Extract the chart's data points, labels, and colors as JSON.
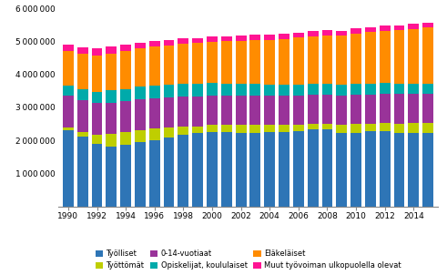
{
  "years": [
    1990,
    1991,
    1992,
    1993,
    1994,
    1995,
    1996,
    1997,
    1998,
    1999,
    2000,
    2001,
    2002,
    2003,
    2004,
    2005,
    2006,
    2007,
    2008,
    2009,
    2010,
    2011,
    2012,
    2013,
    2014,
    2015
  ],
  "tyolliset": [
    2310000,
    2100000,
    1900000,
    1820000,
    1850000,
    1940000,
    2010000,
    2090000,
    2170000,
    2210000,
    2240000,
    2240000,
    2230000,
    2230000,
    2240000,
    2250000,
    2280000,
    2330000,
    2340000,
    2210000,
    2230000,
    2280000,
    2270000,
    2230000,
    2220000,
    2220000
  ],
  "tyottomat": [
    90000,
    160000,
    270000,
    370000,
    390000,
    360000,
    340000,
    290000,
    240000,
    210000,
    220000,
    220000,
    230000,
    240000,
    220000,
    220000,
    200000,
    180000,
    170000,
    260000,
    260000,
    230000,
    250000,
    280000,
    300000,
    310000
  ],
  "nuoret_0_14": [
    960000,
    960000,
    960000,
    955000,
    948000,
    940000,
    933000,
    924000,
    916000,
    910000,
    900000,
    895000,
    890000,
    884000,
    880000,
    876000,
    872000,
    869000,
    869000,
    873000,
    878000,
    882000,
    887000,
    888000,
    886000,
    882000
  ],
  "opiskelijat": [
    300000,
    320000,
    340000,
    360000,
    370000,
    375000,
    375000,
    375000,
    375000,
    375000,
    370000,
    365000,
    360000,
    355000,
    350000,
    345000,
    340000,
    335000,
    335000,
    335000,
    330000,
    325000,
    320000,
    315000,
    310000,
    308000
  ],
  "elakelaset": [
    1050000,
    1080000,
    1110000,
    1130000,
    1150000,
    1165000,
    1185000,
    1200000,
    1215000,
    1235000,
    1255000,
    1280000,
    1305000,
    1330000,
    1355000,
    1385000,
    1415000,
    1435000,
    1460000,
    1490000,
    1530000,
    1565000,
    1595000,
    1625000,
    1655000,
    1690000
  ],
  "muut": [
    190000,
    195000,
    195000,
    195000,
    185000,
    175000,
    170000,
    165000,
    165000,
    160000,
    160000,
    160000,
    160000,
    160000,
    160000,
    160000,
    160000,
    155000,
    155000,
    155000,
    155000,
    150000,
    150000,
    150000,
    150000,
    160000
  ],
  "colors": {
    "tyolliset": "#2E75B6",
    "tyottomat": "#BFCE00",
    "nuoret_0_14": "#993399",
    "opiskelijat": "#00AAAA",
    "elakelaset": "#FF8C00",
    "muut": "#FF1493"
  },
  "legend_labels": {
    "tyolliset": "Työlliset",
    "tyottomat": "Työttömät",
    "nuoret_0_14": "0-14-vuotiaat",
    "opiskelijat": "Opiskelijat, koululaiset",
    "elakelaset": "Eläkeläiset",
    "muut": "Muut työvoiman ulkopuolella olevat"
  },
  "ylim": [
    0,
    6000000
  ],
  "yticks": [
    0,
    1000000,
    2000000,
    3000000,
    4000000,
    5000000,
    6000000
  ],
  "ytick_labels": [
    "",
    "1 000 000",
    "2 000 000",
    "3 000 000",
    "4 000 000",
    "5 000 000",
    "6 000 000"
  ],
  "xticks": [
    1990,
    1992,
    1994,
    1996,
    1998,
    2000,
    2002,
    2004,
    2006,
    2008,
    2010,
    2012,
    2014
  ],
  "background_color": "#ffffff"
}
